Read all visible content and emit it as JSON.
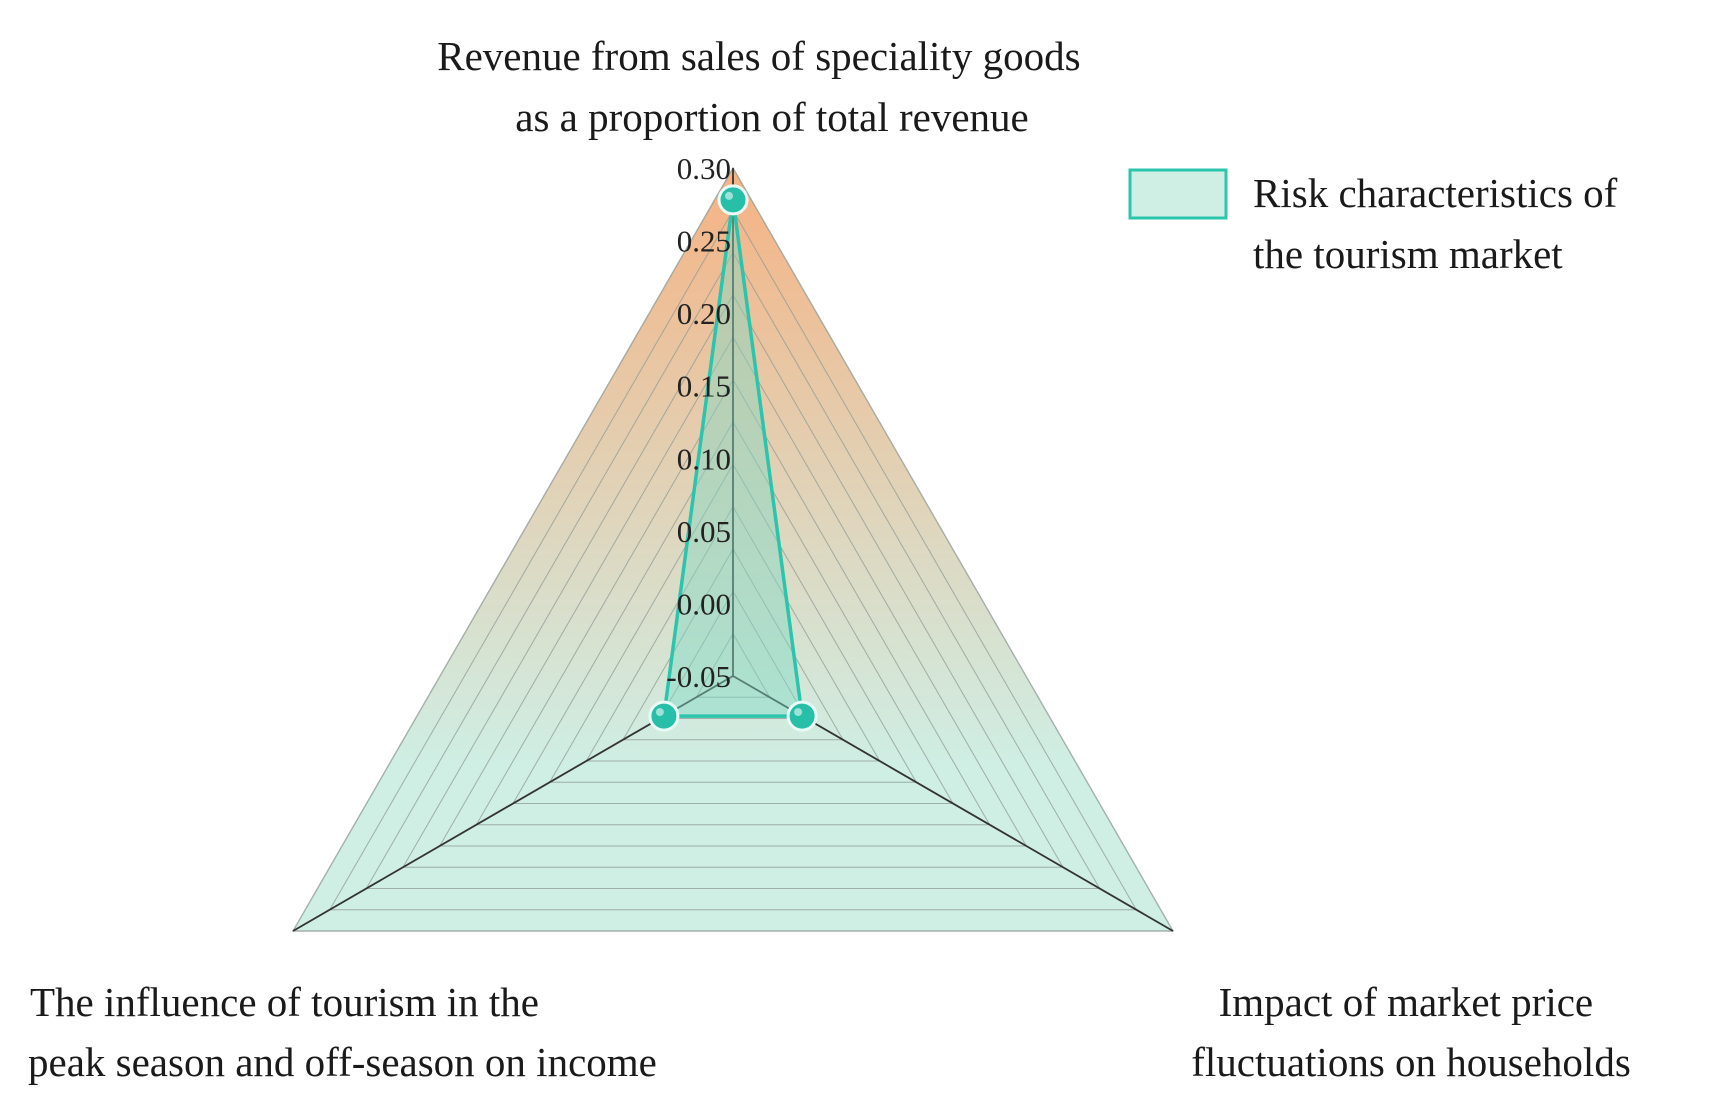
{
  "chart_data": {
    "type": "radar",
    "axes": [
      {
        "id": "top",
        "label_lines": [
          "Revenue from sales of speciality goods",
          "as a proportion of total revenue"
        ]
      },
      {
        "id": "bottom-right",
        "label_lines": [
          "Impact of market price",
          "fluctuations on households"
        ]
      },
      {
        "id": "bottom-left",
        "label_lines": [
          "The influence of tourism in the",
          "peak season and off-season on income"
        ]
      }
    ],
    "range": [
      -0.05,
      0.3
    ],
    "ticks": [
      "-0.05",
      "0.00",
      "0.05",
      "0.10",
      "0.15",
      "0.20",
      "0.25",
      "0.30"
    ],
    "tick_values": [
      -0.05,
      0.0,
      0.05,
      0.1,
      0.15,
      0.2,
      0.25,
      0.3
    ],
    "grid_rings": 12,
    "series": [
      {
        "name": "Risk characteristics of the tourism market",
        "legend_lines": [
          "Risk characteristics of",
          "the tourism market"
        ],
        "values": [
          0.278,
          0.005,
          0.005
        ]
      }
    ],
    "legend_position": "top-right",
    "colors": {
      "top_fill": "#f6b283",
      "bottom_fill": "#cfeee4",
      "series_line": "#2bc4ad",
      "series_fill": "#7fd9c6",
      "marker": "#27bfa8",
      "grid": "#8e9a94",
      "axis": "#333333"
    }
  }
}
